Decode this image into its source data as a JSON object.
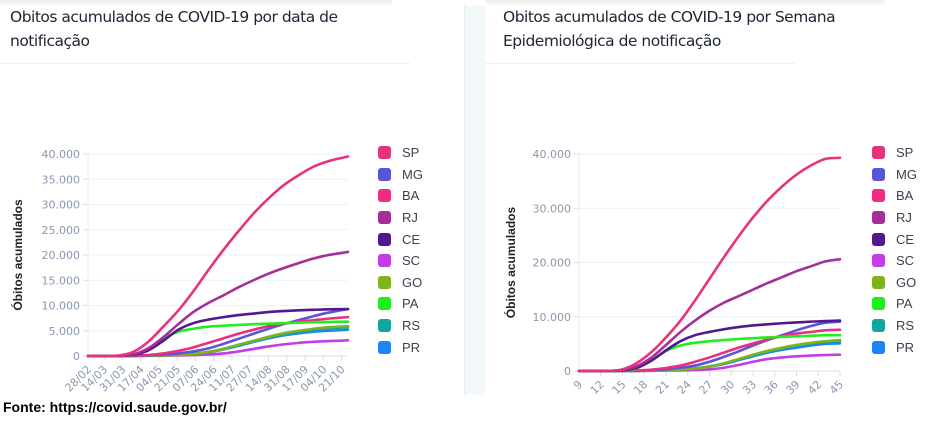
{
  "source_label": "Fonte: https://covid.saude.gov.br/",
  "legend": [
    {
      "label": "SP",
      "color": "#e8327e"
    },
    {
      "label": "MG",
      "color": "#5a55d6"
    },
    {
      "label": "BA",
      "color": "#ee2d7e"
    },
    {
      "label": "RJ",
      "color": "#a42f98"
    },
    {
      "label": "CE",
      "color": "#53178f"
    },
    {
      "label": "SC",
      "color": "#c43be8"
    },
    {
      "label": "GO",
      "color": "#7fb21c"
    },
    {
      "label": "PA",
      "color": "#1ef01e"
    },
    {
      "label": "RS",
      "color": "#10a89a"
    },
    {
      "label": "PR",
      "color": "#1a86f5"
    }
  ],
  "chart_data": [
    {
      "type": "line",
      "title": "Obitos acumulados de COVID-19 por data de notificação",
      "xlabel": "",
      "ylabel": "Óbitos acumulados",
      "ylim": [
        0,
        40000
      ],
      "yticks": [
        0,
        5000,
        10000,
        15000,
        20000,
        25000,
        30000,
        35000,
        40000
      ],
      "ytick_labels": [
        "0",
        "5.000",
        "10.000",
        "15.000",
        "20.000",
        "25.000",
        "30.000",
        "35.000",
        "40.000"
      ],
      "x_tick_labels": [
        "28/02",
        "14/03",
        "31/03",
        "17/04",
        "04/05",
        "21/05",
        "07/06",
        "24/06",
        "11/07",
        "27/07",
        "14/08",
        "31/08",
        "17/09",
        "04/10",
        "21/10"
      ],
      "x_tick_positions_days": [
        0,
        15,
        32,
        49,
        66,
        83,
        100,
        117,
        134,
        150,
        168,
        185,
        202,
        219,
        236
      ],
      "xlim_days": [
        0,
        242
      ],
      "grid": true,
      "legend_position": "right",
      "x_days": [
        0,
        14,
        28,
        42,
        56,
        70,
        84,
        98,
        112,
        126,
        140,
        154,
        168,
        182,
        196,
        210,
        224,
        242
      ],
      "series": [
        {
          "name": "SP",
          "values": [
            0,
            0,
            80,
            800,
            2800,
            5800,
            9000,
            12800,
            17000,
            21000,
            24700,
            28200,
            31200,
            33800,
            35800,
            37500,
            38600,
            39500
          ]
        },
        {
          "name": "MG",
          "values": [
            0,
            0,
            5,
            40,
            120,
            250,
            500,
            900,
            1500,
            2400,
            3400,
            4400,
            5400,
            6300,
            7100,
            7900,
            8600,
            9300
          ]
        },
        {
          "name": "BA",
          "values": [
            0,
            0,
            10,
            60,
            200,
            500,
            1000,
            1700,
            2600,
            3500,
            4400,
            5200,
            5900,
            6400,
            6800,
            7100,
            7400,
            7700
          ]
        },
        {
          "name": "RJ",
          "values": [
            0,
            0,
            20,
            300,
            1500,
            3700,
            6300,
            8700,
            10500,
            12000,
            13600,
            15000,
            16300,
            17400,
            18400,
            19300,
            20000,
            20600
          ]
        },
        {
          "name": "CE",
          "values": [
            0,
            0,
            10,
            200,
            1100,
            3000,
            5200,
            6500,
            7200,
            7700,
            8100,
            8400,
            8700,
            8900,
            9050,
            9150,
            9250,
            9300
          ]
        },
        {
          "name": "SC",
          "values": [
            0,
            0,
            5,
            20,
            40,
            70,
            110,
            180,
            300,
            500,
            900,
            1400,
            1900,
            2300,
            2600,
            2800,
            2950,
            3100
          ]
        },
        {
          "name": "GO",
          "values": [
            0,
            0,
            5,
            20,
            50,
            100,
            200,
            400,
            800,
            1400,
            2200,
            3000,
            3800,
            4500,
            5000,
            5400,
            5700,
            5900
          ]
        },
        {
          "name": "PA",
          "values": [
            0,
            0,
            5,
            150,
            1300,
            3400,
            4800,
            5400,
            5800,
            6000,
            6150,
            6300,
            6400,
            6500,
            6600,
            6700,
            6750,
            6800
          ]
        },
        {
          "name": "RS",
          "values": [
            0,
            0,
            5,
            30,
            80,
            150,
            250,
            450,
            800,
            1400,
            2200,
            3000,
            3700,
            4300,
            4800,
            5200,
            5500,
            5700
          ]
        },
        {
          "name": "PR",
          "values": [
            0,
            0,
            5,
            30,
            80,
            150,
            250,
            420,
            750,
            1300,
            2000,
            2800,
            3500,
            4100,
            4500,
            4800,
            5000,
            5200
          ]
        }
      ]
    },
    {
      "type": "line",
      "title": "Obitos acumulados de COVID-19 por Semana Epidemiológica de notificação",
      "xlabel": "",
      "ylabel": "Óbitos acumulados",
      "ylim": [
        0,
        40000
      ],
      "yticks": [
        0,
        10000,
        20000,
        30000,
        40000
      ],
      "ytick_labels": [
        "0",
        "10.000",
        "20.000",
        "30.000",
        "40.000"
      ],
      "x_tick_labels": [
        "9",
        "12",
        "15",
        "18",
        "21",
        "24",
        "27",
        "30",
        "33",
        "36",
        "39",
        "42",
        "45"
      ],
      "xlim": [
        9,
        45
      ],
      "grid": true,
      "legend_position": "right",
      "x": [
        9,
        11,
        13,
        15,
        17,
        19,
        21,
        23,
        25,
        27,
        29,
        31,
        33,
        35,
        37,
        39,
        41,
        43,
        45
      ],
      "series": [
        {
          "name": "SP",
          "values": [
            0,
            0,
            20,
            300,
            1500,
            3500,
            6200,
            9300,
            13000,
            17000,
            21000,
            24800,
            28300,
            31400,
            34000,
            36200,
            37900,
            39100,
            39300
          ]
        },
        {
          "name": "MG",
          "values": [
            0,
            0,
            5,
            20,
            60,
            150,
            300,
            600,
            1000,
            1700,
            2600,
            3600,
            4700,
            5700,
            6600,
            7500,
            8300,
            8900,
            9100
          ]
        },
        {
          "name": "BA",
          "values": [
            0,
            0,
            5,
            30,
            100,
            250,
            550,
            1000,
            1700,
            2500,
            3400,
            4300,
            5100,
            5800,
            6400,
            6900,
            7200,
            7500,
            7600
          ]
        },
        {
          "name": "RJ",
          "values": [
            0,
            0,
            10,
            200,
            900,
            2500,
            4800,
            7200,
            9300,
            11100,
            12600,
            13800,
            15000,
            16200,
            17300,
            18400,
            19300,
            20200,
            20600
          ]
        },
        {
          "name": "CE",
          "values": [
            0,
            0,
            5,
            100,
            600,
            1900,
            3800,
            5500,
            6600,
            7200,
            7700,
            8100,
            8400,
            8600,
            8800,
            8950,
            9100,
            9200,
            9300
          ]
        },
        {
          "name": "SC",
          "values": [
            0,
            0,
            0,
            10,
            20,
            40,
            70,
            110,
            180,
            300,
            600,
            1100,
            1700,
            2200,
            2500,
            2700,
            2850,
            2950,
            3000
          ]
        },
        {
          "name": "GO",
          "values": [
            0,
            0,
            0,
            10,
            30,
            60,
            120,
            250,
            450,
            800,
            1400,
            2200,
            3000,
            3700,
            4300,
            4800,
            5200,
            5500,
            5700
          ]
        },
        {
          "name": "PA",
          "values": [
            0,
            0,
            0,
            50,
            500,
            2000,
            3700,
            4700,
            5200,
            5500,
            5700,
            5900,
            6050,
            6200,
            6300,
            6400,
            6500,
            6600,
            6600
          ]
        },
        {
          "name": "RS",
          "values": [
            0,
            0,
            0,
            10,
            40,
            80,
            150,
            280,
            500,
            850,
            1400,
            2100,
            2900,
            3600,
            4200,
            4700,
            5100,
            5400,
            5500
          ]
        },
        {
          "name": "PR",
          "values": [
            0,
            0,
            0,
            10,
            40,
            80,
            150,
            260,
            450,
            800,
            1300,
            2000,
            2700,
            3400,
            3900,
            4300,
            4700,
            5000,
            5100
          ]
        }
      ]
    }
  ]
}
